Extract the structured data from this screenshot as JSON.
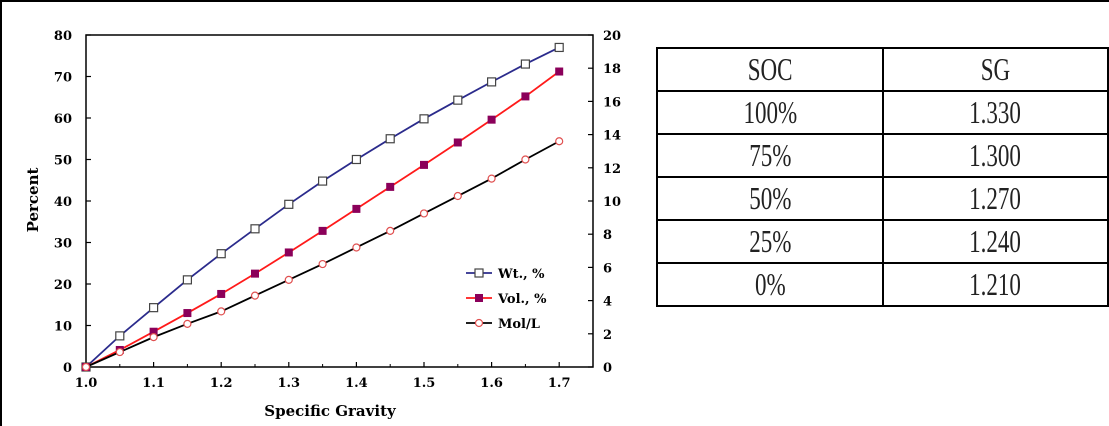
{
  "chart_data": {
    "type": "line",
    "xlabel": "Specific Gravity",
    "ylabel": "Percent",
    "y2label": "",
    "xlim": [
      1.0,
      1.75
    ],
    "ylim": [
      0,
      80
    ],
    "y2lim": [
      0,
      20
    ],
    "x_ticks": [
      "1.0",
      "1.1",
      "1.2",
      "1.3",
      "1.4",
      "1.5",
      "1.6",
      "1.7"
    ],
    "y_ticks": [
      "0",
      "10",
      "20",
      "30",
      "40",
      "50",
      "60",
      "70",
      "80"
    ],
    "y2_ticks": [
      "0",
      "2",
      "4",
      "6",
      "8",
      "10",
      "12",
      "14",
      "16",
      "18",
      "20"
    ],
    "x": [
      1.0,
      1.05,
      1.1,
      1.15,
      1.2,
      1.25,
      1.3,
      1.35,
      1.4,
      1.45,
      1.5,
      1.55,
      1.6,
      1.65,
      1.7
    ],
    "legend_position": "lower-right",
    "series": [
      {
        "name": "Wt., %",
        "axis": "left",
        "color": "#2b2b8c",
        "marker": "square-open",
        "values": [
          0,
          7.5,
          14.3,
          21,
          27.3,
          33.3,
          39.2,
          44.8,
          50,
          55,
          59.8,
          64.3,
          68.7,
          73,
          77
        ]
      },
      {
        "name": "Vol., %",
        "axis": "left",
        "color": "#ff1a1a",
        "marker": "square-filled",
        "values": [
          0,
          4.1,
          8.5,
          13,
          17.6,
          22.5,
          27.6,
          32.8,
          38.1,
          43.4,
          48.7,
          54.1,
          59.6,
          65.2,
          71.2
        ]
      },
      {
        "name": "Mol/L",
        "axis": "right",
        "color": "#000000",
        "marker": "circle-open",
        "values": [
          0,
          0.9,
          1.8,
          2.6,
          3.35,
          4.3,
          5.25,
          6.2,
          7.2,
          8.2,
          9.25,
          10.3,
          11.35,
          12.5,
          13.6
        ]
      }
    ]
  },
  "table": {
    "headers": [
      "SOC",
      "SG"
    ],
    "rows": [
      [
        "100%",
        "1.330"
      ],
      [
        "75%",
        "1.300"
      ],
      [
        "50%",
        "1.270"
      ],
      [
        "25%",
        "1.240"
      ],
      [
        "0%",
        "1.210"
      ]
    ]
  }
}
